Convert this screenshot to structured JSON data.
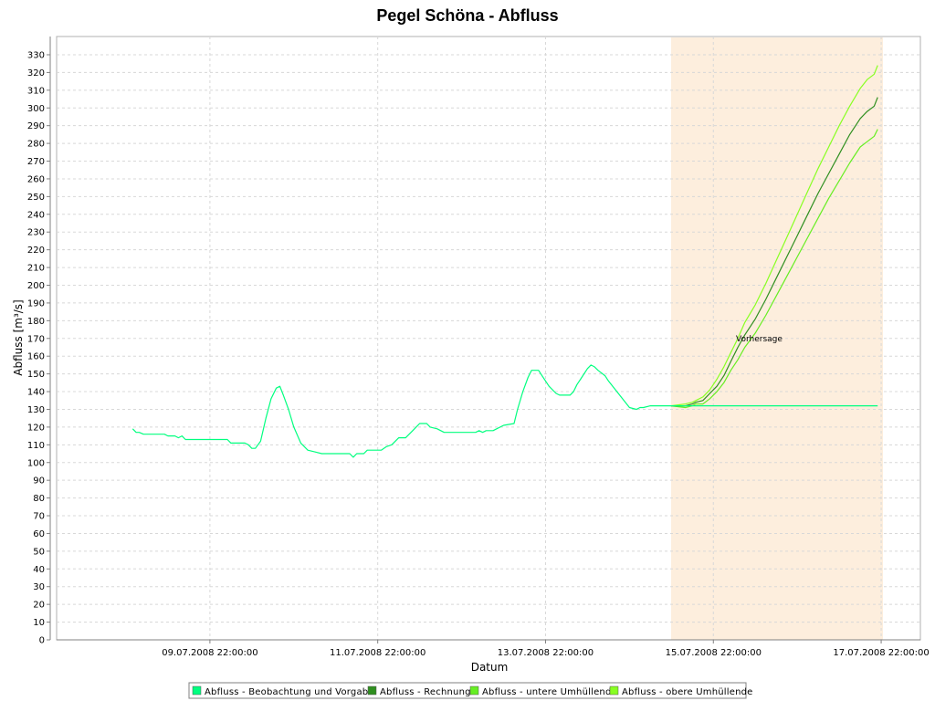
{
  "chart_data": {
    "type": "line",
    "title": "Pegel Schöna - Abfluss",
    "xlabel": "Datum",
    "ylabel": "Abfluss [m³/s]",
    "ylim": [
      0,
      334
    ],
    "yticks": [
      0,
      10,
      20,
      30,
      40,
      50,
      60,
      70,
      80,
      90,
      100,
      110,
      120,
      130,
      140,
      150,
      160,
      170,
      180,
      190,
      200,
      210,
      220,
      230,
      240,
      250,
      260,
      270,
      280,
      290,
      300,
      310,
      320,
      330
    ],
    "x_unit": "hours since 08.07.2008 00:00",
    "xlim": [
      12.6,
      237.0
    ],
    "xticks": [
      {
        "x": 46,
        "label": "09.07.2008 22:00:00"
      },
      {
        "x": 94,
        "label": "11.07.2008 22:00:00"
      },
      {
        "x": 142,
        "label": "13.07.2008 22:00:00"
      },
      {
        "x": 190,
        "label": "15.07.2008 22:00:00"
      },
      {
        "x": 238,
        "label": "17.07.2008 22:00:00"
      }
    ],
    "grid": true,
    "forecast_region": {
      "x_start": 177.9,
      "x_end": 249.0,
      "label": "Vorhersage",
      "label_y": 170,
      "color": "#fdeedd"
    },
    "legend_position": "bottom",
    "series": [
      {
        "name": "Abfluss - Beobachtung und Vorgabe",
        "color": "#00ff7f",
        "points": [
          [
            23.9,
            119
          ],
          [
            24.9,
            117
          ],
          [
            25.8,
            117
          ],
          [
            27.0,
            116
          ],
          [
            30.0,
            116
          ],
          [
            33.0,
            116
          ],
          [
            34.0,
            115
          ],
          [
            36.0,
            115
          ],
          [
            37.0,
            114
          ],
          [
            38.0,
            115
          ],
          [
            39.0,
            113
          ],
          [
            45.0,
            113
          ],
          [
            51.0,
            113
          ],
          [
            52.0,
            111
          ],
          [
            56.0,
            111
          ],
          [
            57.0,
            110
          ],
          [
            58.0,
            108
          ],
          [
            59.0,
            108
          ],
          [
            60.5,
            112
          ],
          [
            62.0,
            125
          ],
          [
            63.5,
            136
          ],
          [
            65.0,
            142
          ],
          [
            66.0,
            143
          ],
          [
            67.0,
            138
          ],
          [
            68.5,
            130
          ],
          [
            70.0,
            120
          ],
          [
            72.0,
            111
          ],
          [
            74.0,
            107
          ],
          [
            76.0,
            106
          ],
          [
            78.0,
            105
          ],
          [
            82.0,
            105
          ],
          [
            86.0,
            105
          ],
          [
            87.0,
            103
          ],
          [
            88.0,
            105
          ],
          [
            90.0,
            105
          ],
          [
            91.0,
            107
          ],
          [
            95.0,
            107
          ],
          [
            96.5,
            109
          ],
          [
            98.0,
            110
          ],
          [
            100.0,
            114
          ],
          [
            102.0,
            114
          ],
          [
            104.0,
            118
          ],
          [
            106.0,
            122
          ],
          [
            108.0,
            122
          ],
          [
            109.0,
            120
          ],
          [
            111.0,
            119
          ],
          [
            113.0,
            117
          ],
          [
            118.0,
            117
          ],
          [
            122.0,
            117
          ],
          [
            123.0,
            118
          ],
          [
            124.0,
            117
          ],
          [
            125.0,
            118
          ],
          [
            127.0,
            118
          ],
          [
            128.0,
            119
          ],
          [
            130.0,
            121
          ],
          [
            133.0,
            122
          ],
          [
            134.0,
            130
          ],
          [
            135.5,
            140
          ],
          [
            137.0,
            148
          ],
          [
            138.0,
            152
          ],
          [
            140.0,
            152
          ],
          [
            141.0,
            149
          ],
          [
            143.0,
            143
          ],
          [
            145.0,
            139
          ],
          [
            146.0,
            138
          ],
          [
            148.0,
            138
          ],
          [
            149.0,
            138
          ],
          [
            150.0,
            140
          ],
          [
            151.0,
            144
          ],
          [
            152.0,
            147
          ],
          [
            154.0,
            153
          ],
          [
            155.0,
            155
          ],
          [
            156.0,
            154
          ],
          [
            157.0,
            152
          ],
          [
            159.0,
            149
          ],
          [
            160.0,
            146
          ],
          [
            162.0,
            141
          ],
          [
            164.0,
            136
          ],
          [
            166.0,
            131
          ],
          [
            168.0,
            130
          ],
          [
            169.0,
            131
          ],
          [
            170.0,
            131
          ],
          [
            172.0,
            132
          ],
          [
            176.0,
            132
          ],
          [
            177.9,
            132
          ],
          [
            190.0,
            132
          ],
          [
            200.0,
            132
          ],
          [
            210.0,
            132
          ],
          [
            220.0,
            132
          ],
          [
            237.0,
            132
          ]
        ]
      },
      {
        "name": "Abfluss - Rechnung",
        "color": "#2f8f1f",
        "points": [
          [
            177.9,
            132
          ],
          [
            182.0,
            132
          ],
          [
            184.0,
            133
          ],
          [
            185.0,
            134
          ],
          [
            187.0,
            135
          ],
          [
            189.0,
            139
          ],
          [
            191.0,
            143
          ],
          [
            193.0,
            149
          ],
          [
            195.0,
            157
          ],
          [
            197.0,
            165
          ],
          [
            199.0,
            172
          ],
          [
            202.0,
            181
          ],
          [
            205.0,
            192
          ],
          [
            208.0,
            204
          ],
          [
            211.0,
            216
          ],
          [
            214.0,
            228
          ],
          [
            217.0,
            240
          ],
          [
            220.0,
            252
          ],
          [
            223.0,
            263
          ],
          [
            226.0,
            274
          ],
          [
            229.0,
            285
          ],
          [
            232.0,
            294
          ],
          [
            234.0,
            298
          ],
          [
            236.0,
            301
          ],
          [
            237.0,
            306
          ]
        ]
      },
      {
        "name": "Abfluss - untere Umhüllende",
        "color": "#66ee22",
        "points": [
          [
            177.9,
            132
          ],
          [
            182.0,
            131
          ],
          [
            184.0,
            132
          ],
          [
            185.0,
            133
          ],
          [
            187.0,
            133
          ],
          [
            189.0,
            136
          ],
          [
            191.0,
            140
          ],
          [
            193.0,
            145
          ],
          [
            195.0,
            152
          ],
          [
            197.0,
            158
          ],
          [
            199.0,
            165
          ],
          [
            202.0,
            173
          ],
          [
            205.0,
            183
          ],
          [
            208.0,
            194
          ],
          [
            211.0,
            205
          ],
          [
            214.0,
            216
          ],
          [
            217.0,
            227
          ],
          [
            220.0,
            238
          ],
          [
            223.0,
            249
          ],
          [
            226.0,
            259
          ],
          [
            229.0,
            269
          ],
          [
            232.0,
            278
          ],
          [
            234.0,
            281
          ],
          [
            236.0,
            284
          ],
          [
            237.0,
            288
          ]
        ]
      },
      {
        "name": "Abfluss - obere Umhüllende",
        "color": "#88ff22",
        "points": [
          [
            177.9,
            132
          ],
          [
            182.0,
            133
          ],
          [
            184.0,
            134
          ],
          [
            185.0,
            135
          ],
          [
            187.0,
            137
          ],
          [
            189.0,
            141
          ],
          [
            191.0,
            147
          ],
          [
            193.0,
            154
          ],
          [
            195.0,
            162
          ],
          [
            197.0,
            170
          ],
          [
            199.0,
            179
          ],
          [
            202.0,
            189
          ],
          [
            205.0,
            201
          ],
          [
            208.0,
            214
          ],
          [
            211.0,
            227
          ],
          [
            214.0,
            240
          ],
          [
            217.0,
            253
          ],
          [
            220.0,
            266
          ],
          [
            223.0,
            278
          ],
          [
            226.0,
            290
          ],
          [
            229.0,
            301
          ],
          [
            232.0,
            311
          ],
          [
            234.0,
            316
          ],
          [
            236.0,
            319
          ],
          [
            237.0,
            324
          ]
        ]
      }
    ]
  }
}
